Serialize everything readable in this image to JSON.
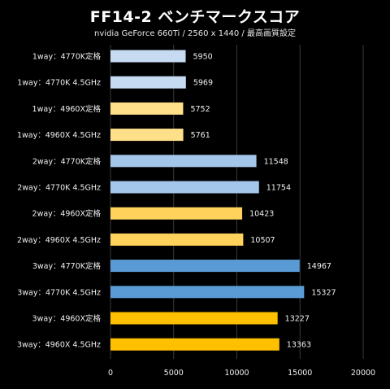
{
  "chart_data": {
    "type": "bar",
    "orientation": "horizontal",
    "title": "FF14-2 ベンチマークスコア",
    "subtitle": "nvidia GeForce 660Ti / 2560 x 1440 / 最高画質設定",
    "categories": [
      "1way：4770K定格",
      "1way：4770K 4.5GHz",
      "1way：4960X定格",
      "1way：4960X 4.5GHz",
      "2way：4770K定格",
      "2way：4770K 4.5GHz",
      "2way：4960X定格",
      "2way：4960X 4.5GHz",
      "3way：4770K定格",
      "3way：4770K 4.5GHz",
      "3way：4960X定格",
      "3way：4960X 4.5GHz"
    ],
    "values": [
      5950,
      5969,
      5752,
      5761,
      11548,
      11754,
      10423,
      10507,
      14967,
      15327,
      13227,
      13363
    ],
    "bar_colors": [
      "#c6daf2",
      "#c6daf2",
      "#ffe08a",
      "#ffe08a",
      "#a4c6ea",
      "#a4c6ea",
      "#ffd25c",
      "#ffd25c",
      "#5b9bd5",
      "#5b9bd5",
      "#ffc000",
      "#ffc000"
    ],
    "xlim": [
      0,
      20000
    ],
    "xticks": [
      "0",
      "5000",
      "10000",
      "15000",
      "20000"
    ],
    "grid": true,
    "background": "#000000"
  }
}
